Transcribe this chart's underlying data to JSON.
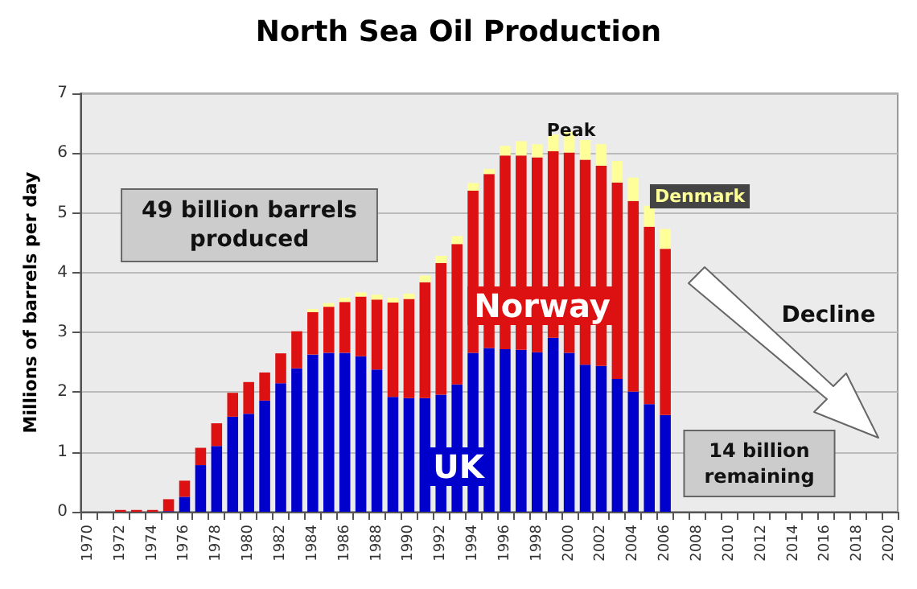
{
  "chart_data": {
    "type": "bar",
    "title": "North Sea Oil Production",
    "ylabel": "Millions of barrels per day",
    "categories": [
      "1970",
      null,
      "1972",
      null,
      "1974",
      null,
      "1976",
      null,
      "1978",
      null,
      "1980",
      null,
      "1982",
      null,
      "1984",
      null,
      "1986",
      null,
      "1988",
      null,
      "1990",
      null,
      "1992",
      null,
      "1994",
      null,
      "1996",
      null,
      "1998",
      null,
      "2000",
      null,
      "2002",
      null,
      "2004",
      null,
      "2006",
      null,
      "2008",
      null,
      "2010",
      null,
      "2012",
      null,
      "2014",
      null,
      "2016",
      null,
      "2018",
      null,
      "2020"
    ],
    "stacked": true,
    "series": [
      {
        "name": "UK",
        "color": "#0000cc",
        "values": [
          null,
          null,
          null,
          null,
          null,
          0.01,
          0.25,
          0.78,
          1.1,
          1.59,
          1.64,
          1.86,
          2.15,
          2.4,
          2.63,
          2.66,
          2.66,
          2.6,
          2.38,
          1.92,
          1.9,
          1.9,
          1.96,
          2.13,
          2.66,
          2.74,
          2.72,
          2.71,
          2.67,
          2.91,
          2.66,
          2.46,
          2.44,
          2.22,
          2.01,
          1.8,
          1.62,
          null,
          null,
          null,
          null,
          null,
          null,
          null,
          null,
          null,
          null,
          null,
          null,
          null,
          null
        ]
      },
      {
        "name": "Norway",
        "color": "#dd1111",
        "values": [
          null,
          null,
          0.03,
          0.03,
          0.03,
          0.2,
          0.27,
          0.29,
          0.38,
          0.4,
          0.53,
          0.47,
          0.5,
          0.62,
          0.71,
          0.77,
          0.85,
          1.0,
          1.17,
          1.58,
          1.66,
          1.94,
          2.2,
          2.35,
          2.71,
          2.91,
          3.24,
          3.25,
          3.26,
          3.12,
          3.35,
          3.43,
          3.35,
          3.29,
          3.19,
          2.97,
          2.78,
          null,
          null,
          null,
          null,
          null,
          null,
          null,
          null,
          null,
          null,
          null,
          null,
          null,
          null
        ]
      },
      {
        "name": "Denmark",
        "color": "#ffff99",
        "values": [
          null,
          null,
          null,
          null,
          null,
          null,
          null,
          null,
          null,
          null,
          null,
          null,
          null,
          null,
          0.05,
          0.06,
          0.07,
          0.07,
          0.08,
          0.08,
          0.09,
          0.11,
          0.12,
          0.13,
          0.13,
          0.08,
          0.16,
          0.24,
          0.22,
          0.28,
          0.35,
          0.33,
          0.36,
          0.36,
          0.39,
          0.35,
          0.33,
          null,
          null,
          null,
          null,
          null,
          null,
          null,
          null,
          null,
          null,
          null,
          null,
          null,
          null
        ]
      }
    ],
    "ylim": [
      0,
      7
    ],
    "yticks": [
      0,
      1,
      2,
      3,
      4,
      5,
      6,
      7
    ],
    "grid": "y",
    "legend": false,
    "annotations": [
      "49 billion barrels produced",
      "Peak",
      "Decline",
      "14 billion remaining"
    ]
  }
}
